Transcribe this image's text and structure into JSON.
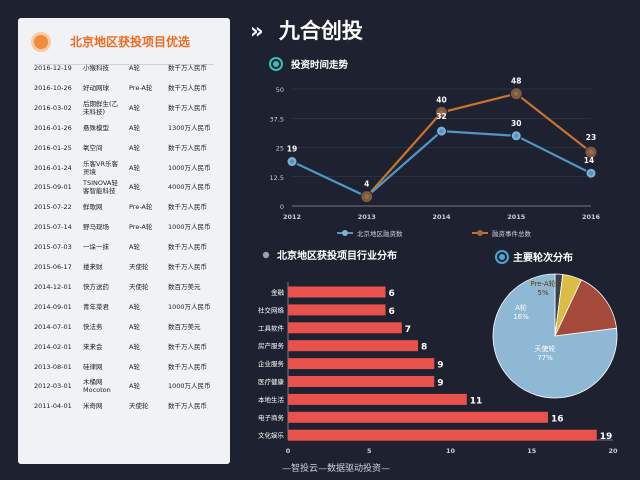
{
  "left_panel": {
    "title": "北京地区获投项目优选",
    "rows": [
      {
        "date": "2016-12-19",
        "name": "小猴科技",
        "round": "A轮",
        "amount": "数千万人民币"
      },
      {
        "date": "2016-10-26",
        "name": "好动网球",
        "round": "Pre-A轮",
        "amount": "数千万人民币"
      },
      {
        "date": "2016-03-02",
        "name": "后期鲜生(乙未科技)",
        "round": "A轮",
        "amount": "数千万人民币"
      },
      {
        "date": "2016-01-26",
        "name": "悬殊模型",
        "round": "A轮",
        "amount": "1300万人民币"
      },
      {
        "date": "2016-01-25",
        "name": "氧空间",
        "round": "A轮",
        "amount": "数千万人民币"
      },
      {
        "date": "2016-01-24",
        "name": "乐客VR乐客灵境",
        "round": "A轮",
        "amount": "1000万人民币"
      },
      {
        "date": "2015-09-01",
        "name": "TSINOVA轻客智能科技",
        "round": "A轮",
        "amount": "4000万人民币"
      },
      {
        "date": "2015-07-22",
        "name": "鲜歌网",
        "round": "Pre-A轮",
        "amount": "数千万人民币"
      },
      {
        "date": "2015-07-14",
        "name": "野马现场",
        "round": "Pre-A轮",
        "amount": "1000万人民币"
      },
      {
        "date": "2015-07-03",
        "name": "一垛一抹",
        "round": "A轮",
        "amount": "数千万人民币"
      },
      {
        "date": "2015-06-17",
        "name": "搂来财",
        "round": "天使轮",
        "amount": "数千万人民币"
      },
      {
        "date": "2014-12-01",
        "name": "快方送药",
        "round": "天使轮",
        "amount": "数百万美元"
      },
      {
        "date": "2014-09-01",
        "name": "青年菜君",
        "round": "A轮",
        "amount": "1000万人民币"
      },
      {
        "date": "2014-07-01",
        "name": "快法务",
        "round": "A轮",
        "amount": "数百万美元"
      },
      {
        "date": "2014-02-01",
        "name": "来来会",
        "round": "A轮",
        "amount": "数千万人民币"
      },
      {
        "date": "2013-08-01",
        "name": "硅律网",
        "round": "A轮",
        "amount": "数千万人民币"
      },
      {
        "date": "2012-03-01",
        "name": "木桶网Mocoton",
        "round": "A轮",
        "amount": "1000万人民币"
      },
      {
        "date": "2011-04-01",
        "name": "米奇网",
        "round": "天使轮",
        "amount": "数千万人民币"
      }
    ]
  },
  "header": {
    "arrow": "»",
    "title": "九合创投"
  },
  "footer": "—智投云—数据驱动投资—",
  "chart_data": [
    {
      "type": "line",
      "title": "投资时间走势",
      "x": [
        2012,
        2013,
        2014,
        2015,
        2016
      ],
      "ylim": [
        0,
        50
      ],
      "yticks": [
        0,
        12.5,
        25,
        37.5,
        50
      ],
      "series": [
        {
          "name": "北京地区融资数",
          "values": [
            19,
            4,
            32,
            30,
            14
          ],
          "color": "#4f95c6"
        },
        {
          "name": "融资事件总数",
          "values": [
            null,
            4,
            40,
            48,
            23
          ],
          "color": "#c7742d"
        }
      ],
      "legend_position": "bottom"
    },
    {
      "type": "bar",
      "orientation": "horizontal",
      "title": "北京地区获投项目行业分布",
      "categories": [
        "金融",
        "社交网络",
        "工具软件",
        "房产服务",
        "企业服务",
        "医疗健康",
        "本地生活",
        "电子商务",
        "文化娱乐"
      ],
      "values": [
        6,
        6,
        7,
        8,
        9,
        9,
        11,
        16,
        19
      ],
      "xlim": [
        0,
        20
      ],
      "xticks": [
        0,
        5,
        10,
        15,
        20
      ],
      "color": "#e8514c"
    },
    {
      "type": "pie",
      "title": "主要轮次分布",
      "slices": [
        {
          "label": "天使轮",
          "value": 77,
          "text": "77%",
          "color": "#8fb8d4"
        },
        {
          "label": "A轮",
          "value": 16,
          "text": "16%",
          "color": "#a34a3a"
        },
        {
          "label": "Pre-A轮",
          "value": 5,
          "text": "5%",
          "color": "#d9bd45"
        },
        {
          "label": "",
          "value": 2,
          "text": "",
          "color": "#3d3f4a"
        }
      ]
    }
  ],
  "colors": {
    "background": "#1e2230",
    "panel": "#f1f2f5",
    "accent": "#ec6b22",
    "teal_icon": "#34c2b8"
  }
}
